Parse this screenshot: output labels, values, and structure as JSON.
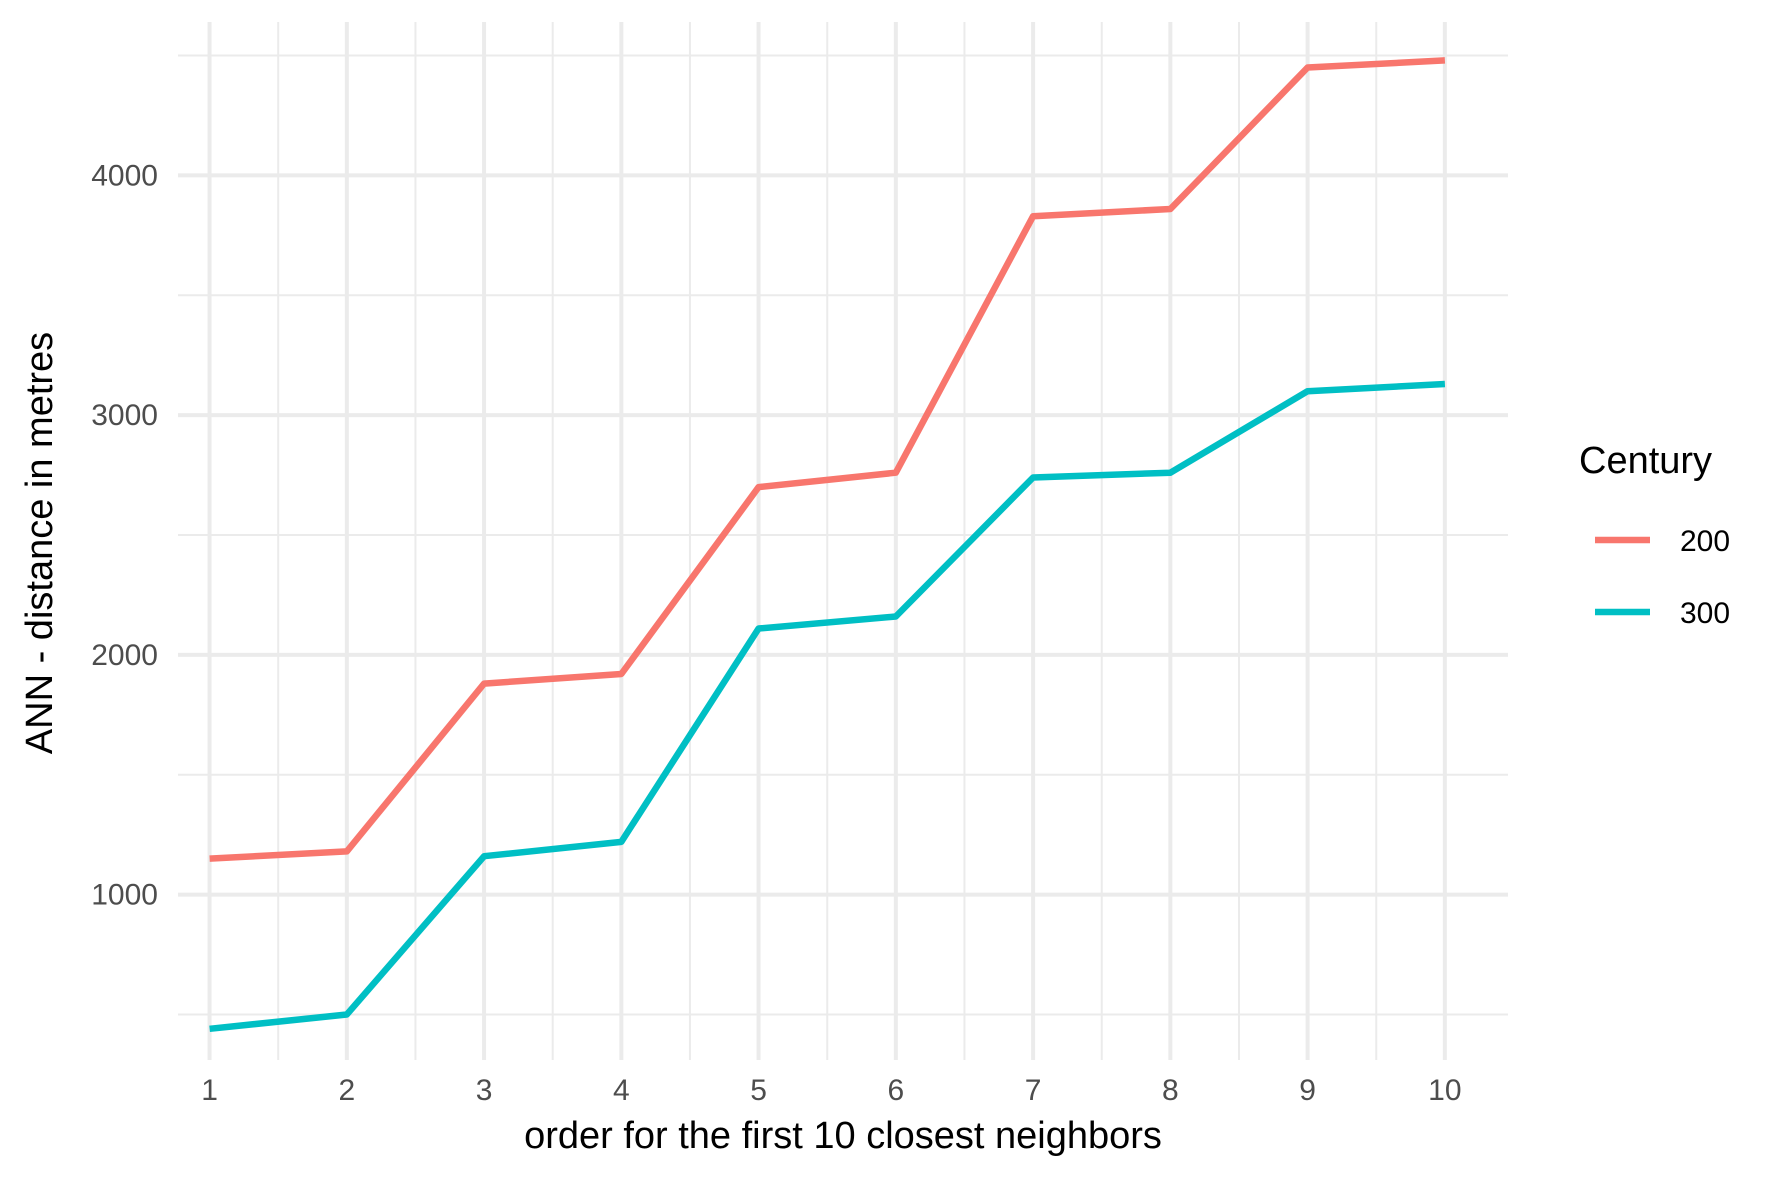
{
  "chart_data": {
    "type": "line",
    "xlabel": "order for the first 10 closest neighbors",
    "ylabel": "ANN - distance in metres",
    "x": [
      1,
      2,
      3,
      4,
      5,
      6,
      7,
      8,
      9,
      10
    ],
    "x_ticks": [
      "1",
      "2",
      "3",
      "4",
      "5",
      "6",
      "7",
      "8",
      "9",
      "10"
    ],
    "xlim": [
      0.77,
      10.46
    ],
    "y_ticks": [
      1000,
      2000,
      3000,
      4000
    ],
    "y_tick_labels": [
      "1000",
      "2000",
      "3000",
      "4000"
    ],
    "ylim": [
      310,
      4640
    ],
    "grid": true,
    "legend": {
      "title": "Century",
      "position": "right"
    },
    "series": [
      {
        "name": "200",
        "color": "#F8766D",
        "values": [
          1150,
          1180,
          1880,
          1920,
          2700,
          2760,
          3830,
          3860,
          4450,
          4480
        ]
      },
      {
        "name": "300",
        "color": "#00BFC4",
        "values": [
          440,
          500,
          1160,
          1220,
          2110,
          2160,
          2740,
          2760,
          3100,
          3130
        ]
      }
    ]
  }
}
